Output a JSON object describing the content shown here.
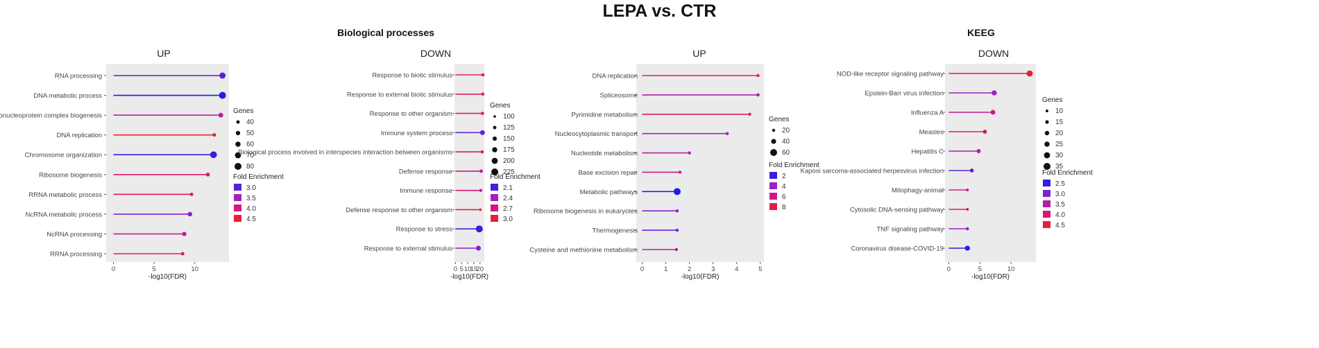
{
  "title": "LEPA vs. CTR",
  "sections": [
    "Biological processes",
    "KEEG"
  ],
  "chart_data": [
    {
      "type": "lollipop",
      "title": "UP",
      "xlabel": "-log10(FDR)",
      "xlim": [
        -0.9,
        14.2
      ],
      "xticks": [
        0,
        5,
        10
      ],
      "xtick_labels": [
        "0",
        "5",
        "10"
      ],
      "categories": [
        "RNA processing",
        "DNA metabolic process",
        "Ribonucleoprotein complex biogenesis",
        "DNA replication",
        "Chromosome organization",
        "Ribosome biogenesis",
        "RRNA metabolic process",
        "NcRNA metabolic process",
        "NcRNA processing",
        "RRNA processing"
      ],
      "values": [
        13.4,
        13.4,
        13.2,
        12.4,
        12.3,
        11.6,
        9.6,
        9.4,
        8.7,
        8.5
      ],
      "genes": [
        72,
        80,
        55,
        38,
        78,
        45,
        40,
        52,
        50,
        40
      ],
      "fold_enrichment": [
        3.0,
        2.7,
        3.6,
        4.5,
        2.8,
        4.1,
        4.3,
        3.2,
        3.8,
        4.2
      ],
      "size_legend": {
        "title": "Genes",
        "values": [
          40,
          50,
          60,
          70,
          80
        ],
        "labels": [
          "40",
          "50",
          "60",
          "70",
          "80"
        ]
      },
      "color_legend": {
        "title": "Fold Enrichment",
        "values": [
          3.0,
          3.5,
          4.0,
          4.5
        ],
        "labels": [
          "3.0",
          "3.5",
          "4.0",
          "4.5"
        ],
        "min": 2.7,
        "max": 4.6
      }
    },
    {
      "type": "lollipop",
      "title": "DOWN",
      "xlabel": "-log10(FDR)",
      "xlim": [
        -0.8,
        23.5
      ],
      "xticks": [
        0,
        5,
        10,
        15,
        20
      ],
      "xtick_labels": [
        "0",
        "5",
        "10",
        "15",
        "20"
      ],
      "categories": [
        "Response to biotic stimulus",
        "Response to external biotic stimulus",
        "Response to other organism",
        "Immune system process",
        "Biological process involved in interspecies interaction between organisms",
        "Defense response",
        "Immune response",
        "Defense response to other organism",
        "Response to stress",
        "Response to external stimulus"
      ],
      "values": [
        22.4,
        22.3,
        22.0,
        22.0,
        21.7,
        21.0,
        20.6,
        20.3,
        19.4,
        18.7
      ],
      "genes": [
        120,
        120,
        120,
        165,
        120,
        125,
        115,
        95,
        225,
        170
      ],
      "fold_enrichment": [
        2.8,
        2.8,
        2.8,
        2.2,
        2.8,
        2.6,
        2.7,
        3.0,
        2.05,
        2.3
      ],
      "size_legend": {
        "title": "Genes",
        "values": [
          100,
          125,
          150,
          175,
          200,
          225
        ],
        "labels": [
          "100",
          "125",
          "150",
          "175",
          "200",
          "225"
        ]
      },
      "color_legend": {
        "title": "Fold Enrichment",
        "values": [
          2.1,
          2.4,
          2.7,
          3.0
        ],
        "labels": [
          "2.1",
          "2.4",
          "2.7",
          "3.0"
        ],
        "min": 2.0,
        "max": 3.05
      }
    },
    {
      "type": "lollipop",
      "title": "UP",
      "xlabel": "-log10(FDR)",
      "xlim": [
        -0.25,
        5.15
      ],
      "xticks": [
        0,
        1,
        2,
        3,
        4,
        5
      ],
      "xtick_labels": [
        "0",
        "1",
        "2",
        "3",
        "4",
        "5"
      ],
      "categories": [
        "DNA replication",
        "Spliceosome",
        "Pyrimidine metabolism",
        "Nucleocytoplasmic transport",
        "Nucleotide metabolism",
        "Base excision repair",
        "Metabolic pathways",
        "Ribosome biogenesis in eukaryotes",
        "Thermogenesis",
        "Cysteine and methionine metabolism"
      ],
      "values": [
        4.9,
        4.9,
        4.55,
        3.6,
        2.0,
        1.6,
        1.48,
        1.48,
        1.48,
        1.45
      ],
      "genes": [
        15,
        22,
        18,
        18,
        12,
        10,
        60,
        15,
        18,
        12
      ],
      "fold_enrichment": [
        8.5,
        5.0,
        7.0,
        4.0,
        5.0,
        6.0,
        1.5,
        3.5,
        3.0,
        5.0
      ],
      "size_legend": {
        "title": "Genes",
        "values": [
          20,
          40,
          60
        ],
        "labels": [
          "20",
          "40",
          "60"
        ]
      },
      "color_legend": {
        "title": "Fold Enrichment",
        "values": [
          2,
          4,
          6,
          8
        ],
        "labels": [
          "2",
          "4",
          "6",
          "8"
        ],
        "min": 1.5,
        "max": 8.8
      }
    },
    {
      "type": "lollipop",
      "title": "DOWN",
      "xlabel": "-log10(FDR)",
      "xlim": [
        -0.6,
        14.0
      ],
      "xticks": [
        0,
        5,
        10
      ],
      "xtick_labels": [
        "0",
        "5",
        "10"
      ],
      "categories": [
        "NOD-like receptor signaling pathway",
        "Epstein-Barr virus infection",
        "Influenza A",
        "Measles",
        "Hepatitis C",
        "Kaposi sarcoma-associated herpesvirus infection",
        "Mitophagy-animal",
        "Cytosolic DNA-sensing pathway",
        "TNF signaling pathway",
        "Coronavirus disease-COVID-19"
      ],
      "values": [
        13.0,
        7.3,
        7.1,
        5.8,
        4.8,
        3.7,
        3.0,
        3.0,
        3.0,
        3.0
      ],
      "genes": [
        30,
        24,
        22,
        18,
        18,
        17,
        8,
        6,
        12,
        24
      ],
      "fold_enrichment": [
        4.6,
        3.2,
        3.8,
        4.0,
        3.5,
        2.8,
        3.8,
        4.4,
        3.2,
        2.45
      ],
      "size_legend": {
        "title": "Genes",
        "values": [
          10,
          15,
          20,
          25,
          30,
          35
        ],
        "labels": [
          "10",
          "15",
          "20",
          "25",
          "30",
          "35"
        ]
      },
      "color_legend": {
        "title": "Fold Enrichment",
        "values": [
          2.5,
          3.0,
          3.5,
          4.0,
          4.5
        ],
        "labels": [
          "2.5",
          "3.0",
          "3.5",
          "4.0",
          "4.5"
        ],
        "min": 2.4,
        "max": 4.7
      }
    }
  ]
}
